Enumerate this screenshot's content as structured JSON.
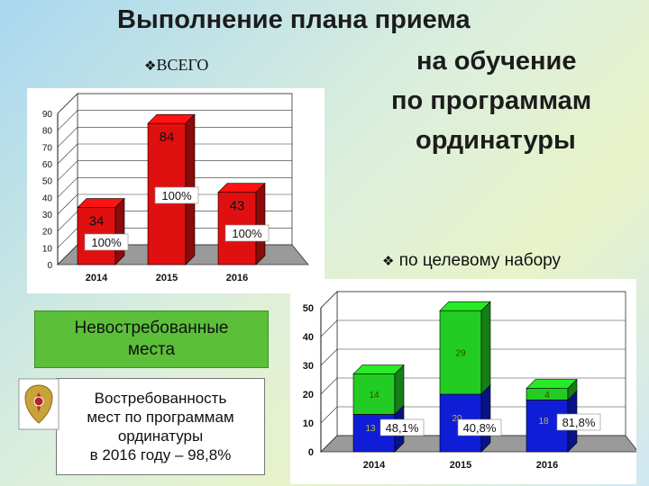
{
  "slide": {
    "title_lines": [
      "Выполнение плана приема",
      "на обучение",
      "по программам",
      "ординатуры"
    ],
    "bullet_total": "ВСЕГО",
    "bullet_target": "по целевому набору",
    "bullet_marker": "❖",
    "box_unclaimed": [
      "Невостребованные",
      "места"
    ],
    "box_demand": [
      "Востребованность",
      "мест по программам",
      "ординатуры",
      "в 2016 году – 98,8%"
    ]
  },
  "colors": {
    "red_bar": "#e01010",
    "green_bar": "#22cc22",
    "blue_bar": "#0f1ed6",
    "green_box": "#5bbf3a"
  },
  "chart_data": [
    {
      "type": "bar",
      "categories": [
        "2014",
        "2015",
        "2016"
      ],
      "values": [
        34,
        84,
        43
      ],
      "percent_labels": [
        "100%",
        "100%",
        "100%"
      ],
      "yticks": [
        "0",
        "10",
        "20",
        "30",
        "40",
        "50",
        "60",
        "70",
        "80",
        "90"
      ],
      "ylim": [
        0,
        90
      ],
      "title": "",
      "xlabel": "",
      "ylabel": ""
    },
    {
      "type": "bar",
      "stacked": true,
      "categories": [
        "2014",
        "2015",
        "2016"
      ],
      "series": [
        {
          "values": [
            13,
            20,
            18
          ]
        },
        {
          "values": [
            14,
            29,
            4
          ]
        }
      ],
      "percent_labels": [
        "48,1%",
        "40,8%",
        "81,8%"
      ],
      "yticks": [
        "0",
        "10",
        "20",
        "30",
        "40",
        "50"
      ],
      "ylim": [
        0,
        50
      ],
      "title": "",
      "xlabel": "",
      "ylabel": ""
    }
  ]
}
